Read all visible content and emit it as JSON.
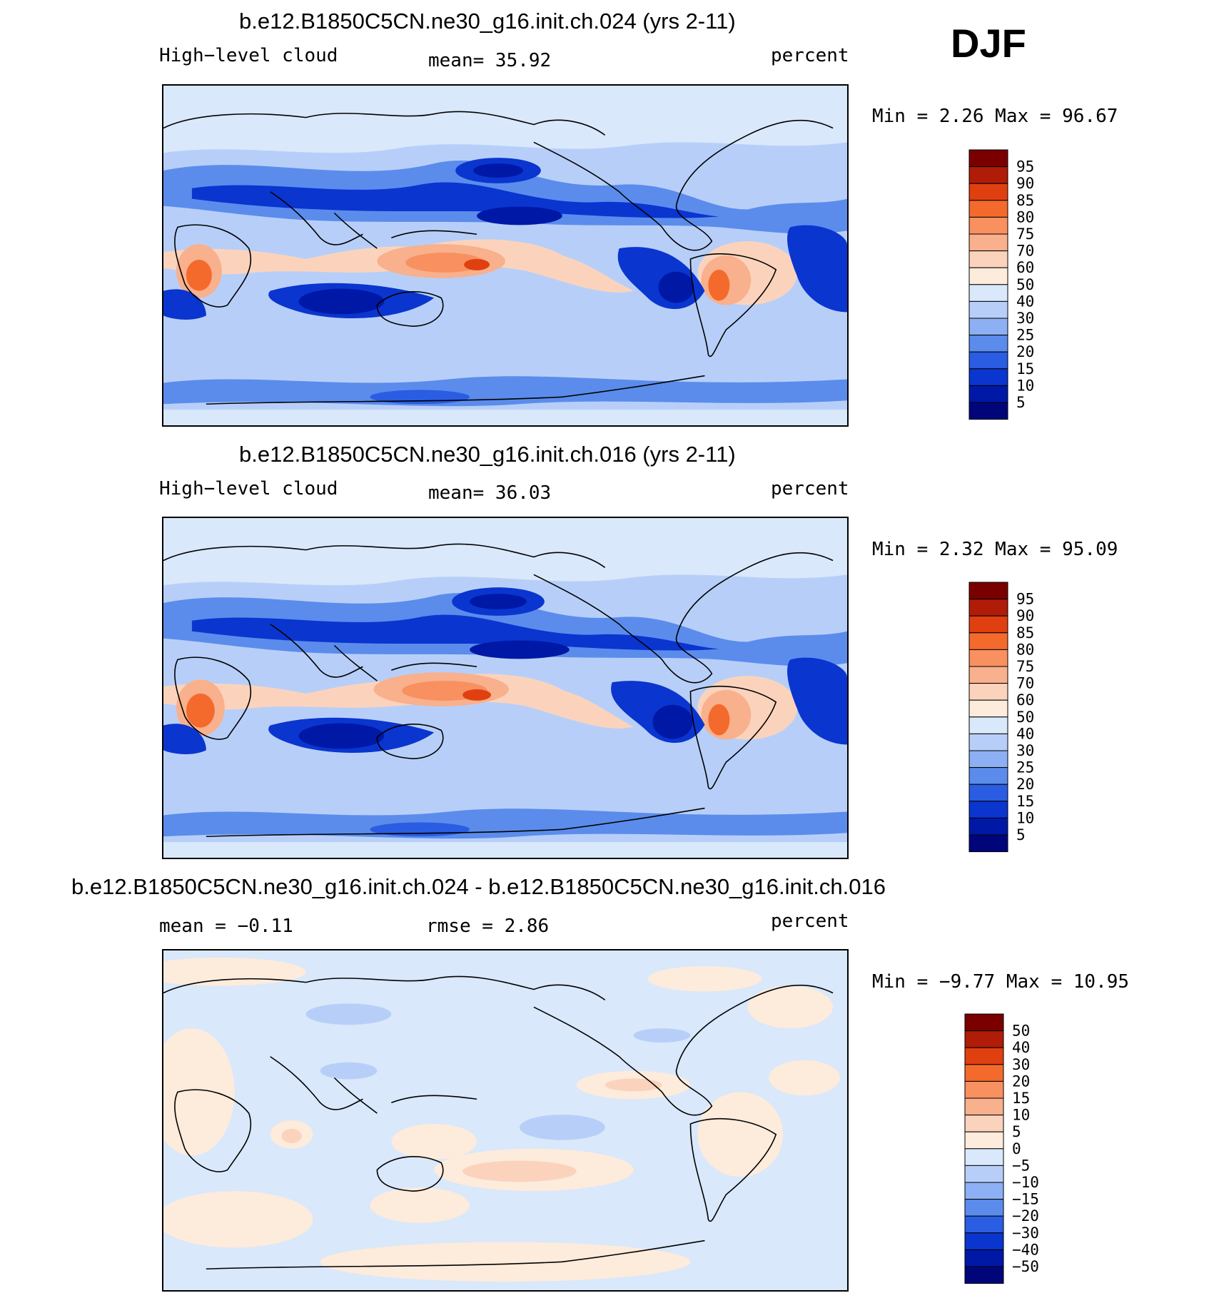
{
  "season": "DJF",
  "panels": [
    {
      "title": "b.e12.B1850C5CN.ne30_g16.init.ch.024 (yrs 2-11)",
      "left_label": "High−level cloud",
      "center_label": "mean=   35.92",
      "right_label": "percent",
      "min_max": "Min =    2.26 Max =   96.67",
      "colorbar_levels": [
        "95",
        "90",
        "85",
        "80",
        "75",
        "70",
        "60",
        "50",
        "40",
        "30",
        "25",
        "20",
        "15",
        "10",
        "5"
      ],
      "colorbar_colors": [
        "#7a0000",
        "#b01c08",
        "#e0400f",
        "#f46a2c",
        "#f89060",
        "#f9b08c",
        "#fbd3bc",
        "#fdebdc",
        "#d9e8fb",
        "#b7cff8",
        "#8cb0f3",
        "#5b8cec",
        "#2a5de2",
        "#0a35cf",
        "#0018a6",
        "#00067a"
      ]
    },
    {
      "title": "b.e12.B1850C5CN.ne30_g16.init.ch.016 (yrs 2-11)",
      "left_label": "High−level cloud",
      "center_label": "mean=   36.03",
      "right_label": "percent",
      "min_max": "Min =    2.32 Max =   95.09",
      "colorbar_levels": [
        "95",
        "90",
        "85",
        "80",
        "75",
        "70",
        "60",
        "50",
        "40",
        "30",
        "25",
        "20",
        "15",
        "10",
        "5"
      ],
      "colorbar_colors": [
        "#7a0000",
        "#b01c08",
        "#e0400f",
        "#f46a2c",
        "#f89060",
        "#f9b08c",
        "#fbd3bc",
        "#fdebdc",
        "#d9e8fb",
        "#b7cff8",
        "#8cb0f3",
        "#5b8cec",
        "#2a5de2",
        "#0a35cf",
        "#0018a6",
        "#00067a"
      ]
    },
    {
      "title": "b.e12.B1850C5CN.ne30_g16.init.ch.024 - b.e12.B1850C5CN.ne30_g16.init.ch.016",
      "left_label": "mean =   −0.11",
      "center_label": "rmse =    2.86",
      "right_label": "percent",
      "min_max": "Min =   −9.77 Max =   10.95",
      "colorbar_levels": [
        "50",
        "40",
        "30",
        "20",
        "15",
        "10",
        "5",
        "0",
        "−5",
        "−10",
        "−15",
        "−20",
        "−30",
        "−40",
        "−50"
      ],
      "colorbar_colors": [
        "#7a0000",
        "#b01c08",
        "#e0400f",
        "#f46a2c",
        "#f89060",
        "#f9b08c",
        "#fbd3bc",
        "#fdebdc",
        "#d9e8fb",
        "#b7cff8",
        "#8cb0f3",
        "#5b8cec",
        "#2a5de2",
        "#0a35cf",
        "#0018a6",
        "#00067a"
      ]
    }
  ]
}
